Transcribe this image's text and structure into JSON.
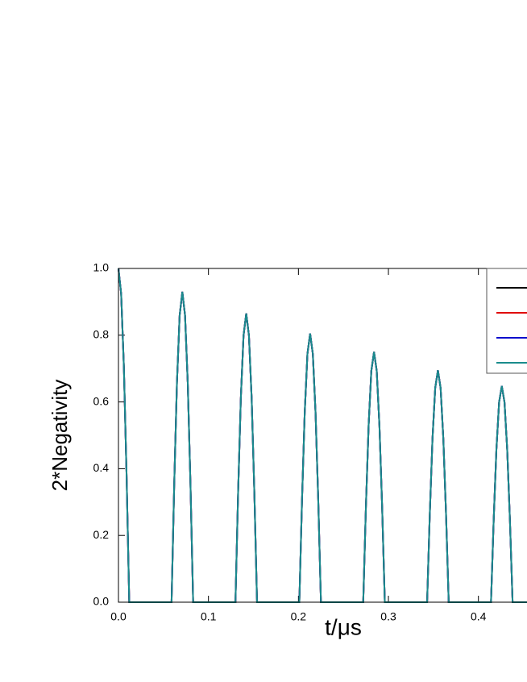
{
  "chart_data": {
    "type": "line",
    "x_label": "t/μs",
    "y_label": "2*Negativity",
    "x": [
      0,
      0.003,
      0.006,
      0.009,
      0.012,
      0.059,
      0.062,
      0.065,
      0.068,
      0.071,
      0.074,
      0.077,
      0.08,
      0.083,
      0.13,
      0.133,
      0.136,
      0.139,
      0.142,
      0.145,
      0.148,
      0.151,
      0.154,
      0.201,
      0.204,
      0.207,
      0.21,
      0.213,
      0.216,
      0.219,
      0.222,
      0.225,
      0.272,
      0.275,
      0.278,
      0.281,
      0.284,
      0.287,
      0.29,
      0.293,
      0.296,
      0.343,
      0.346,
      0.349,
      0.352,
      0.355,
      0.358,
      0.361,
      0.364,
      0.367,
      0.414,
      0.417,
      0.42,
      0.423,
      0.426,
      0.429,
      0.432,
      0.435,
      0.438,
      0.454
    ],
    "series": [
      {
        "color": "#000000",
        "values": [
          1,
          0.924,
          0.707,
          0.383,
          0,
          0,
          0.356,
          0.658,
          0.859,
          0.93,
          0.859,
          0.658,
          0.356,
          0,
          0,
          0.331,
          0.612,
          0.799,
          0.865,
          0.799,
          0.612,
          0.331,
          0,
          0,
          0.308,
          0.569,
          0.744,
          0.805,
          0.744,
          0.569,
          0.308,
          0,
          0,
          0.287,
          0.53,
          0.693,
          0.75,
          0.693,
          0.53,
          0.287,
          0,
          0,
          0.266,
          0.491,
          0.642,
          0.695,
          0.642,
          0.491,
          0.266,
          0,
          0,
          0.248,
          0.458,
          0.599,
          0.648,
          0.599,
          0.458,
          0.248,
          0,
          0
        ]
      },
      {
        "color": "#e00000",
        "values": [
          1,
          0.924,
          0.707,
          0.383,
          0,
          0,
          0.356,
          0.658,
          0.859,
          0.93,
          0.859,
          0.658,
          0.356,
          0,
          0,
          0.331,
          0.612,
          0.799,
          0.865,
          0.799,
          0.612,
          0.331,
          0,
          0,
          0.308,
          0.569,
          0.744,
          0.805,
          0.744,
          0.569,
          0.308,
          0,
          0,
          0.287,
          0.53,
          0.693,
          0.75,
          0.693,
          0.53,
          0.287,
          0,
          0,
          0.266,
          0.491,
          0.642,
          0.695,
          0.642,
          0.491,
          0.266,
          0,
          0,
          0.248,
          0.458,
          0.599,
          0.648,
          0.599,
          0.458,
          0.248,
          0,
          0
        ]
      },
      {
        "color": "#0000cc",
        "values": [
          1,
          0.924,
          0.707,
          0.383,
          0,
          0,
          0.356,
          0.658,
          0.859,
          0.93,
          0.859,
          0.658,
          0.356,
          0,
          0,
          0.331,
          0.612,
          0.799,
          0.865,
          0.799,
          0.612,
          0.331,
          0,
          0,
          0.308,
          0.569,
          0.744,
          0.805,
          0.744,
          0.569,
          0.308,
          0,
          0,
          0.287,
          0.53,
          0.693,
          0.75,
          0.693,
          0.53,
          0.287,
          0,
          0,
          0.266,
          0.491,
          0.642,
          0.695,
          0.642,
          0.491,
          0.266,
          0,
          0,
          0.248,
          0.458,
          0.599,
          0.648,
          0.599,
          0.458,
          0.248,
          0,
          0
        ]
      },
      {
        "color": "#1a8c8c",
        "values": [
          1,
          0.924,
          0.707,
          0.383,
          0,
          0,
          0.356,
          0.658,
          0.859,
          0.93,
          0.859,
          0.658,
          0.356,
          0,
          0,
          0.331,
          0.612,
          0.799,
          0.865,
          0.799,
          0.612,
          0.331,
          0,
          0,
          0.308,
          0.569,
          0.744,
          0.805,
          0.744,
          0.569,
          0.308,
          0,
          0,
          0.287,
          0.53,
          0.693,
          0.75,
          0.693,
          0.53,
          0.287,
          0,
          0,
          0.266,
          0.491,
          0.642,
          0.695,
          0.642,
          0.491,
          0.266,
          0,
          0,
          0.248,
          0.458,
          0.599,
          0.648,
          0.599,
          0.458,
          0.248,
          0,
          0
        ]
      }
    ],
    "xlim": [
      0,
      0.454
    ],
    "ylim": [
      0,
      1
    ],
    "xticks": [
      {
        "value": 0,
        "label": "0.0"
      },
      0.1,
      0.2,
      0.3,
      0.4
    ],
    "yticks": [
      {
        "value": 0,
        "label": "0.0"
      },
      0.2,
      0.4,
      0.6,
      0.8,
      {
        "value": 1,
        "label": "1.0"
      }
    ],
    "legend": "upper right"
  }
}
